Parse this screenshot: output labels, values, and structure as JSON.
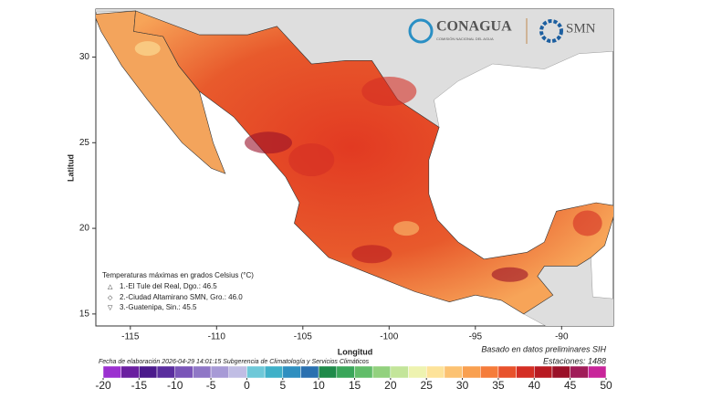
{
  "header": {
    "logo1": "CONAGUA",
    "logo1_sub": "COMISIÓN NACIONAL DEL AGUA",
    "logo2": "SMN"
  },
  "map": {
    "xlabel": "Longitud",
    "ylabel": "Latitud",
    "xlim": [
      -117.0,
      -87.0
    ],
    "ylim": [
      14.3,
      32.8
    ],
    "xticks": [
      -115,
      -110,
      -105,
      -100,
      -95,
      -90
    ],
    "yticks": [
      15,
      20,
      25,
      30
    ]
  },
  "legend": {
    "title": "Temperaturas máximas en grados Celsius (°C)",
    "items": [
      "1.-El Tule del Real, Dgo.: 46.5",
      "2.-Ciudad Altamirano SMN, Gro.: 46.0",
      "3.-Guatenipa, Sin.: 45.5"
    ]
  },
  "footer": {
    "date": "Fecha de elaboración 2026-04-29 14:01:15 Subgerencia de Climatología y Servicios Climáticos",
    "source": "Basado en datos preliminares SIH",
    "stations": "Estaciones: 1488"
  },
  "colorbar": {
    "lim": [
      -20,
      50
    ],
    "ticks": [
      -20,
      -15,
      -10,
      -5,
      0,
      5,
      10,
      15,
      20,
      25,
      30,
      35,
      40,
      45,
      50
    ],
    "colors": [
      "#9b30d0",
      "#6a1fa0",
      "#4b1a8c",
      "#5a2e9e",
      "#7a55b8",
      "#8f77c6",
      "#a79ad6",
      "#c0bde4",
      "#6ec8d8",
      "#3fb0c8",
      "#2f8fc0",
      "#2a70b0",
      "#1f8a4a",
      "#3aa65a",
      "#62bd6a",
      "#92d17e",
      "#c3e59a",
      "#eef3b0",
      "#fde39a",
      "#fcc272",
      "#f9a050",
      "#f57c3a",
      "#e8522c",
      "#d42e24",
      "#b81a22",
      "#9a1028",
      "#a01c58",
      "#c8259a"
    ]
  }
}
